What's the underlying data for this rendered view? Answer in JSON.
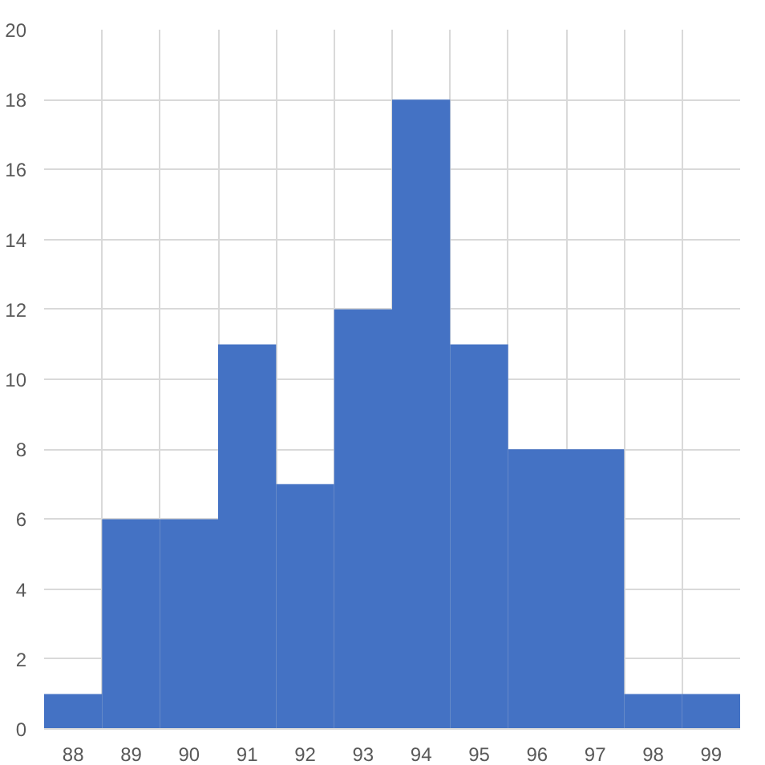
{
  "chart_data": {
    "type": "histogram",
    "bins": [
      87.5,
      88.5,
      89.5,
      90.5,
      91.5,
      92.5,
      93.5,
      94.5,
      95.5,
      96.5,
      97.5,
      98.5,
      99.5
    ],
    "values": [
      1,
      6,
      6,
      11,
      7,
      12,
      18,
      11,
      8,
      8,
      1,
      1
    ],
    "color": "#4472c4",
    "xlim": [
      87.5,
      99.5
    ],
    "xticks": [
      88,
      89,
      90,
      91,
      92,
      93,
      94,
      95,
      96,
      97,
      98,
      99
    ],
    "ylim": [
      0,
      20
    ],
    "yticks": [
      0,
      2,
      4,
      6,
      8,
      10,
      12,
      14,
      16,
      18,
      20
    ],
    "grid": true
  }
}
